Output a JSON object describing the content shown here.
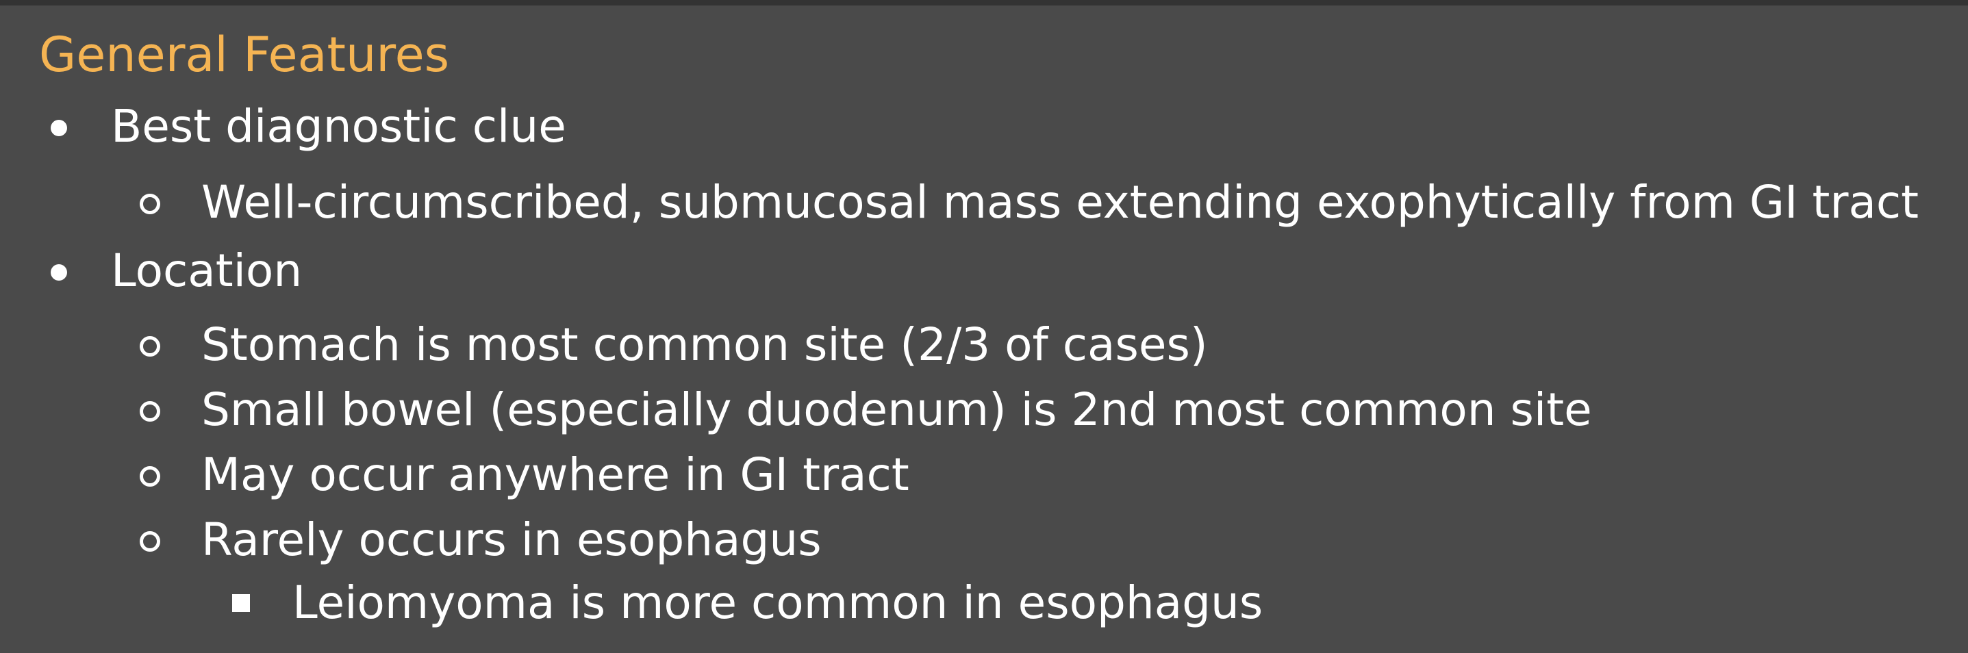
{
  "slide": {
    "heading": "General Features",
    "bullets": [
      {
        "level": 1,
        "marker": "disc-icon",
        "text": "Best diagnostic clue"
      },
      {
        "level": 2,
        "marker": "circle-icon",
        "text": "Well-circumscribed, submucosal mass extending exophytically from GI tract"
      },
      {
        "level": 1,
        "marker": "disc-icon",
        "text": "Location"
      },
      {
        "level": 2,
        "marker": "circle-icon",
        "text": "Stomach is most common site (2/3 of cases)"
      },
      {
        "level": 2,
        "marker": "circle-icon",
        "text": "Small bowel (especially duodenum) is 2nd most common site"
      },
      {
        "level": 2,
        "marker": "circle-icon",
        "text": "May occur anywhere in GI tract"
      },
      {
        "level": 2,
        "marker": "circle-icon",
        "text": "Rarely occurs in esophagus"
      },
      {
        "level": 3,
        "marker": "square-icon",
        "text": "Leiomyoma is more common in esophagus"
      }
    ],
    "colors": {
      "background": "#4a4a4a",
      "heading": "#f5b453",
      "text": "#ffffff"
    }
  }
}
